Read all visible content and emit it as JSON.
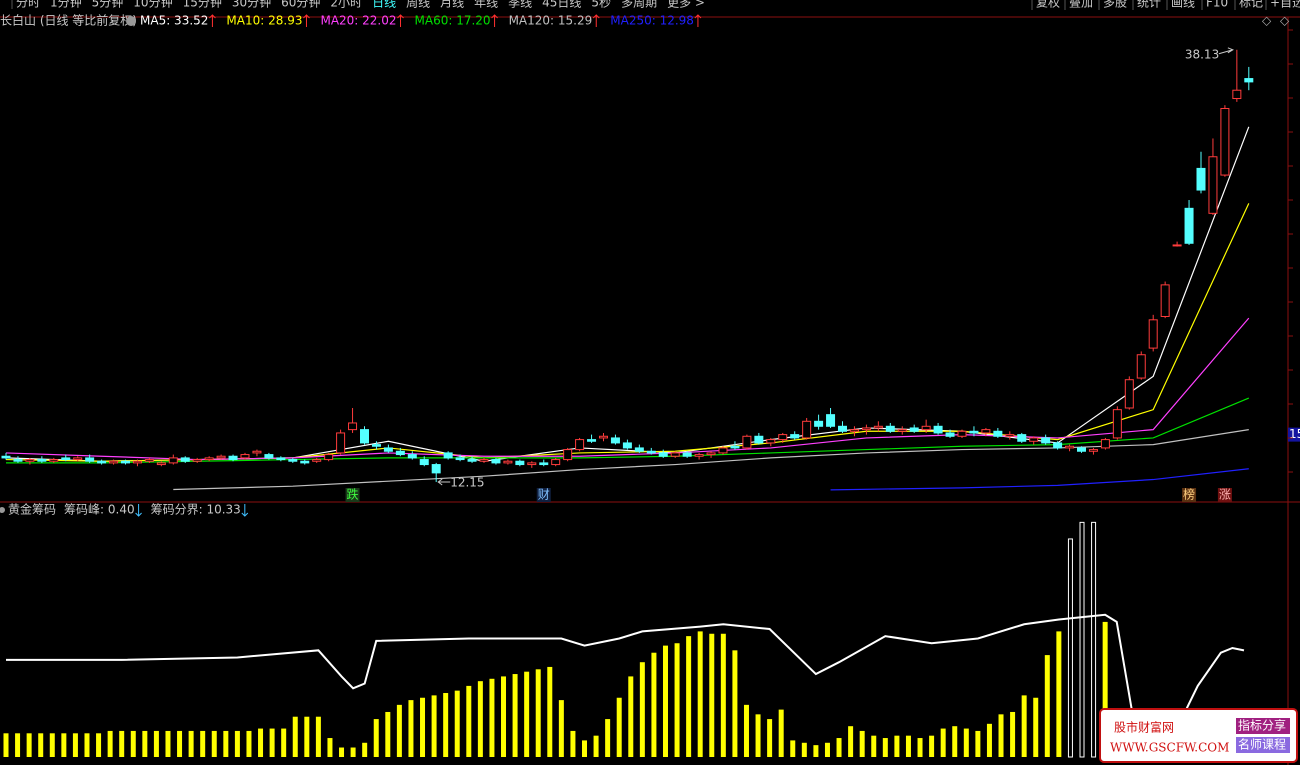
{
  "toolbar": {
    "left": [
      "分时",
      "1分钟",
      "5分钟",
      "10分钟",
      "15分钟",
      "30分钟",
      "60分钟",
      "2小时",
      "日线",
      "周线",
      "月线",
      "年线",
      "季线",
      "45日线",
      "5秒",
      "多周期",
      "更多 >"
    ],
    "active": 8,
    "right": [
      "复权",
      "叠加",
      "多股",
      "统计",
      "画线",
      "F10",
      "标记",
      "+自选"
    ]
  },
  "chart_data": [
    {
      "type": "candlestick",
      "title": "长白山 (日线 等比前复权)",
      "legend": [
        {
          "text": "MA5: 33.52",
          "color": "#ffffff"
        },
        {
          "text": "MA10: 28.93",
          "color": "#ffff00"
        },
        {
          "text": "MA20: 22.02",
          "color": "#ff40ff"
        },
        {
          "text": "MA60: 17.20",
          "color": "#00e000"
        },
        {
          "text": "MA120: 15.29",
          "color": "#c0c0c0"
        },
        {
          "text": "MA250: 12.98",
          "color": "#2020ff"
        }
      ],
      "ylim": [
        11.07,
        39.92
      ],
      "yticks": [
        15
      ],
      "ohlc": [
        [
          13.7,
          13.9,
          13.5,
          13.6
        ],
        [
          13.5,
          13.7,
          13.3,
          13.4
        ],
        [
          13.4,
          13.6,
          13.2,
          13.5
        ],
        [
          13.5,
          13.7,
          13.3,
          13.4
        ],
        [
          13.4,
          13.6,
          13.3,
          13.5
        ],
        [
          13.6,
          13.8,
          13.4,
          13.5
        ],
        [
          13.5,
          13.7,
          13.4,
          13.6
        ],
        [
          13.6,
          13.8,
          13.3,
          13.4
        ],
        [
          13.4,
          13.5,
          13.2,
          13.3
        ],
        [
          13.3,
          13.5,
          13.2,
          13.4
        ],
        [
          13.4,
          13.5,
          13.2,
          13.3
        ],
        [
          13.3,
          13.5,
          13.1,
          13.4
        ],
        [
          13.4,
          13.6,
          13.3,
          13.5
        ],
        [
          13.2,
          13.4,
          13.1,
          13.3
        ],
        [
          13.3,
          13.8,
          13.2,
          13.6
        ],
        [
          13.6,
          13.7,
          13.3,
          13.4
        ],
        [
          13.4,
          13.6,
          13.3,
          13.5
        ],
        [
          13.5,
          13.7,
          13.4,
          13.6
        ],
        [
          13.6,
          13.8,
          13.5,
          13.7
        ],
        [
          13.7,
          13.8,
          13.4,
          13.5
        ],
        [
          13.6,
          13.9,
          13.5,
          13.8
        ],
        [
          13.9,
          14.1,
          13.7,
          14.0
        ],
        [
          13.8,
          13.9,
          13.5,
          13.6
        ],
        [
          13.6,
          13.7,
          13.4,
          13.5
        ],
        [
          13.5,
          13.6,
          13.3,
          13.4
        ],
        [
          13.4,
          13.5,
          13.2,
          13.3
        ],
        [
          13.4,
          13.6,
          13.3,
          13.5
        ],
        [
          13.5,
          13.9,
          13.4,
          13.8
        ],
        [
          13.9,
          15.3,
          13.8,
          15.1
        ],
        [
          15.3,
          16.6,
          15.1,
          15.7
        ],
        [
          15.3,
          15.5,
          14.4,
          14.5
        ],
        [
          14.4,
          14.6,
          14.1,
          14.3
        ],
        [
          14.2,
          14.4,
          13.9,
          14.0
        ],
        [
          14.0,
          14.2,
          13.7,
          13.8
        ],
        [
          13.8,
          14.0,
          13.5,
          13.6
        ],
        [
          13.5,
          13.7,
          13.1,
          13.2
        ],
        [
          13.2,
          13.3,
          12.15,
          12.7
        ],
        [
          13.9,
          14.0,
          13.5,
          13.6
        ],
        [
          13.6,
          13.8,
          13.4,
          13.5
        ],
        [
          13.5,
          13.7,
          13.3,
          13.4
        ],
        [
          13.4,
          13.6,
          13.3,
          13.5
        ],
        [
          13.5,
          13.6,
          13.2,
          13.3
        ],
        [
          13.3,
          13.5,
          13.2,
          13.4
        ],
        [
          13.4,
          13.5,
          13.1,
          13.2
        ],
        [
          13.2,
          13.4,
          13.0,
          13.3
        ],
        [
          13.3,
          13.5,
          13.1,
          13.2
        ],
        [
          13.2,
          13.6,
          13.1,
          13.5
        ],
        [
          13.5,
          14.2,
          13.4,
          14.1
        ],
        [
          14.1,
          14.8,
          14.0,
          14.7
        ],
        [
          14.7,
          15.0,
          14.5,
          14.6
        ],
        [
          14.8,
          15.1,
          14.6,
          14.9
        ],
        [
          14.8,
          15.0,
          14.4,
          14.5
        ],
        [
          14.5,
          14.7,
          14.1,
          14.2
        ],
        [
          14.2,
          14.4,
          13.9,
          14.0
        ],
        [
          14.0,
          14.2,
          13.8,
          13.9
        ],
        [
          13.9,
          14.1,
          13.6,
          13.7
        ],
        [
          13.7,
          14.0,
          13.6,
          13.9
        ],
        [
          13.9,
          14.0,
          13.6,
          13.7
        ],
        [
          13.7,
          13.9,
          13.5,
          13.8
        ],
        [
          13.8,
          14.0,
          13.6,
          13.9
        ],
        [
          13.9,
          14.3,
          13.8,
          14.2
        ],
        [
          14.3,
          14.6,
          14.1,
          14.2
        ],
        [
          14.2,
          15.0,
          14.1,
          14.9
        ],
        [
          14.9,
          15.1,
          14.4,
          14.5
        ],
        [
          14.5,
          14.8,
          14.3,
          14.7
        ],
        [
          14.7,
          15.1,
          14.5,
          15.0
        ],
        [
          15.0,
          15.2,
          14.7,
          14.8
        ],
        [
          14.8,
          16.0,
          14.7,
          15.8
        ],
        [
          15.8,
          16.2,
          15.3,
          15.5
        ],
        [
          16.2,
          16.6,
          15.4,
          15.5
        ],
        [
          15.5,
          15.8,
          15.1,
          15.2
        ],
        [
          15.2,
          15.5,
          14.9,
          15.3
        ],
        [
          15.3,
          15.6,
          15.0,
          15.4
        ],
        [
          15.4,
          15.8,
          15.2,
          15.5
        ],
        [
          15.5,
          15.7,
          15.1,
          15.2
        ],
        [
          15.2,
          15.5,
          15.0,
          15.3
        ],
        [
          15.4,
          15.6,
          15.1,
          15.2
        ],
        [
          15.3,
          15.9,
          15.1,
          15.5
        ],
        [
          15.5,
          15.7,
          15.0,
          15.1
        ],
        [
          15.1,
          15.3,
          14.8,
          14.9
        ],
        [
          14.9,
          15.3,
          14.8,
          15.2
        ],
        [
          15.2,
          15.5,
          14.9,
          15.1
        ],
        [
          15.1,
          15.4,
          14.9,
          15.3
        ],
        [
          15.2,
          15.4,
          14.8,
          14.9
        ],
        [
          14.9,
          15.2,
          14.7,
          15.0
        ],
        [
          15.0,
          15.1,
          14.5,
          14.6
        ],
        [
          14.6,
          14.9,
          14.4,
          14.8
        ],
        [
          14.8,
          15.0,
          14.4,
          14.5
        ],
        [
          14.5,
          14.6,
          14.1,
          14.2
        ],
        [
          14.2,
          14.4,
          14.0,
          14.3
        ],
        [
          14.2,
          14.3,
          13.9,
          14.0
        ],
        [
          14.0,
          14.2,
          13.8,
          14.1
        ],
        [
          14.2,
          14.8,
          14.1,
          14.7
        ],
        [
          14.8,
          16.7,
          14.7,
          16.5
        ],
        [
          16.6,
          18.5,
          16.5,
          18.3
        ],
        [
          18.4,
          20.0,
          18.3,
          19.8
        ],
        [
          20.2,
          22.2,
          20.0,
          21.9
        ],
        [
          22.1,
          24.2,
          22.0,
          24.0
        ],
        [
          26.4,
          26.6,
          26.3,
          26.4
        ],
        [
          28.6,
          29.1,
          26.4,
          26.5
        ],
        [
          31.0,
          32.0,
          29.5,
          29.7
        ],
        [
          28.3,
          32.8,
          28.2,
          31.7
        ],
        [
          30.6,
          34.8,
          30.5,
          34.6
        ],
        [
          35.2,
          38.13,
          35.0,
          35.7
        ],
        [
          36.4,
          37.1,
          35.7,
          36.2
        ]
      ],
      "ma": [
        {
          "name": "MA5",
          "color": "#ffffff",
          "x": [
            0,
            8,
            16,
            24,
            32,
            40,
            48,
            56,
            64,
            72,
            80,
            88,
            96,
            104
          ],
          "values": [
            13.6,
            13.4,
            13.5,
            13.6,
            14.6,
            13.4,
            14.2,
            13.9,
            14.7,
            15.4,
            15.2,
            14.5,
            18.5,
            33.5
          ]
        },
        {
          "name": "MA10",
          "color": "#ffff00",
          "x": [
            0,
            8,
            16,
            24,
            32,
            40,
            48,
            56,
            64,
            72,
            80,
            88,
            96,
            104
          ],
          "values": [
            13.5,
            13.4,
            13.5,
            13.6,
            14.2,
            13.6,
            13.9,
            14.0,
            14.5,
            15.2,
            15.2,
            14.7,
            16.5,
            28.9
          ]
        },
        {
          "name": "MA20",
          "color": "#ff40ff",
          "x": [
            0,
            8,
            16,
            24,
            32,
            40,
            48,
            56,
            64,
            72,
            80,
            88,
            96,
            104
          ],
          "values": [
            13.9,
            13.7,
            13.5,
            13.6,
            13.9,
            13.7,
            13.7,
            13.9,
            14.2,
            14.8,
            15.0,
            14.8,
            15.3,
            22.0
          ]
        },
        {
          "name": "MA60",
          "color": "#00e000",
          "x": [
            0,
            8,
            16,
            24,
            32,
            40,
            48,
            56,
            64,
            72,
            80,
            88,
            96,
            104
          ],
          "values": [
            13.3,
            13.3,
            13.4,
            13.5,
            13.6,
            13.6,
            13.6,
            13.7,
            13.9,
            14.1,
            14.3,
            14.4,
            14.8,
            17.2
          ]
        },
        {
          "name": "MA120",
          "color": "#c0c0c0",
          "x": [
            14,
            24,
            32,
            40,
            48,
            56,
            64,
            72,
            80,
            88,
            96,
            104
          ],
          "values": [
            11.7,
            11.9,
            12.2,
            12.5,
            12.9,
            13.2,
            13.6,
            13.9,
            14.1,
            14.2,
            14.4,
            15.3
          ]
        },
        {
          "name": "MA250",
          "color": "#2020ff",
          "x": [
            69,
            80,
            88,
            96,
            104
          ],
          "values": [
            11.68,
            11.8,
            11.95,
            12.3,
            12.95
          ]
        }
      ],
      "markers": [
        {
          "text": "跌",
          "x": 29,
          "color": "#40ff40",
          "bg": "#1a3a1a"
        },
        {
          "text": "财",
          "x": 45,
          "color": "#80c0ff",
          "bg": "#102040"
        },
        {
          "text": "榜",
          "x": 99,
          "color": "#ffd080",
          "bg": "#5a3010"
        },
        {
          "text": "涨",
          "x": 102,
          "color": "#ffb0b0",
          "bg": "#701010"
        }
      ]
    },
    {
      "type": "bar",
      "title": "黄金筹码",
      "legend": [
        "筹码峰: 0.40",
        "筹码分界: 10.33"
      ],
      "ylim": [
        0,
        100
      ],
      "bars": {
        "color": "#ffff00",
        "values": [
          10,
          10,
          10,
          10,
          10,
          10,
          10,
          10,
          10,
          11,
          11,
          11,
          11,
          11,
          11,
          11,
          11,
          11,
          11,
          11,
          11,
          11,
          12,
          12,
          12,
          17,
          17,
          17,
          8,
          4,
          4,
          6,
          16,
          19,
          22,
          24,
          25,
          26,
          27,
          28,
          30,
          32,
          33,
          34,
          35,
          36,
          37,
          38,
          24,
          11,
          7,
          9,
          16,
          25,
          34,
          40,
          44,
          47,
          48,
          51,
          53,
          52,
          52,
          45,
          22,
          18,
          16,
          20,
          7,
          6,
          5,
          6,
          8,
          13,
          11,
          9,
          8,
          9,
          9,
          8,
          9,
          12,
          13,
          12,
          11,
          14,
          18,
          19,
          26,
          25,
          43,
          53,
          null,
          null,
          null,
          57
        ]
      },
      "highlight_bars": {
        "color": "#ffffff",
        "x": [
          92,
          93,
          94
        ],
        "values": [
          92,
          99,
          99
        ]
      },
      "line": {
        "color": "#ffffff",
        "x": [
          0,
          10,
          20,
          27,
          29,
          30,
          31,
          32,
          40,
          48,
          50,
          53,
          55,
          60,
          62,
          66,
          70,
          72,
          76,
          80,
          84,
          88,
          91,
          95,
          96,
          98,
          100,
          103,
          105,
          106,
          107
        ],
        "values": [
          41,
          41,
          42,
          45,
          34,
          29,
          31,
          49,
          50,
          50,
          47,
          50,
          53,
          55,
          56,
          54,
          35,
          40,
          51,
          48,
          50,
          56,
          58,
          60,
          57,
          0,
          0,
          30,
          44,
          46,
          45
        ]
      }
    }
  ],
  "watermark": {
    "site": "股市财富网",
    "url": "WWW.GSCFW.COM",
    "tags": [
      "指标分享",
      "名师课程"
    ]
  }
}
